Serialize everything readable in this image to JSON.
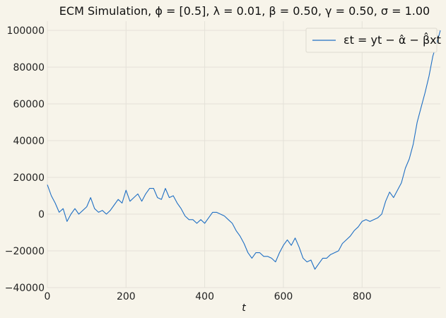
{
  "chart_data": {
    "type": "line",
    "title": "ECM Simulation, ϕ = [0.5], λ = 0.01, β = 0.50, γ = 0.50, σ = 1.00",
    "xlabel": "t",
    "ylabel": "",
    "xlim": [
      0,
      999
    ],
    "ylim": [
      -40000,
      105000
    ],
    "xticks": [
      0,
      200,
      400,
      600,
      800
    ],
    "yticks": [
      -40000,
      -20000,
      0,
      20000,
      40000,
      60000,
      80000,
      100000
    ],
    "grid": true,
    "legend_position": "top-right",
    "colors": {
      "line": "#1f6fc4",
      "grid": "#e4e1d8",
      "background": "#f7f4ea"
    },
    "series": [
      {
        "name": "εt = yt − α̂ − β̂xt",
        "x": [
          0,
          10,
          20,
          30,
          40,
          50,
          60,
          70,
          80,
          90,
          100,
          110,
          120,
          130,
          140,
          150,
          160,
          170,
          180,
          190,
          200,
          210,
          220,
          230,
          240,
          250,
          260,
          270,
          280,
          290,
          300,
          310,
          320,
          330,
          340,
          350,
          360,
          370,
          380,
          390,
          400,
          410,
          420,
          430,
          440,
          450,
          460,
          470,
          480,
          490,
          500,
          510,
          520,
          530,
          540,
          550,
          560,
          570,
          580,
          590,
          600,
          610,
          620,
          630,
          640,
          650,
          660,
          670,
          680,
          690,
          700,
          710,
          720,
          730,
          740,
          750,
          760,
          770,
          780,
          790,
          800,
          810,
          820,
          830,
          840,
          850,
          860,
          870,
          880,
          890,
          900,
          910,
          920,
          930,
          940,
          950,
          960,
          970,
          980,
          990,
          999
        ],
        "y": [
          16000,
          10000,
          6000,
          1000,
          3000,
          -4000,
          0,
          3000,
          0,
          2000,
          4000,
          9000,
          3000,
          1000,
          2000,
          0,
          2000,
          5000,
          8000,
          6000,
          13000,
          7000,
          9000,
          11000,
          7000,
          11000,
          14000,
          14000,
          9000,
          8000,
          14000,
          9000,
          10000,
          6000,
          3000,
          -1000,
          -3000,
          -3000,
          -5000,
          -3000,
          -5000,
          -2000,
          1000,
          1000,
          0,
          -1000,
          -3000,
          -5000,
          -9000,
          -12000,
          -16000,
          -21000,
          -24000,
          -21000,
          -21000,
          -23000,
          -23000,
          -24000,
          -26000,
          -21000,
          -17000,
          -14000,
          -17000,
          -13000,
          -18000,
          -24000,
          -26000,
          -25000,
          -30000,
          -27000,
          -24000,
          -24000,
          -22000,
          -21000,
          -20000,
          -16000,
          -14000,
          -12000,
          -9000,
          -7000,
          -4000,
          -3000,
          -4000,
          -3000,
          -2000,
          0,
          7000,
          12000,
          9000,
          13000,
          17000,
          25000,
          30000,
          38000,
          50000,
          58000,
          66000,
          75000,
          86000,
          93000,
          100000
        ]
      }
    ]
  }
}
